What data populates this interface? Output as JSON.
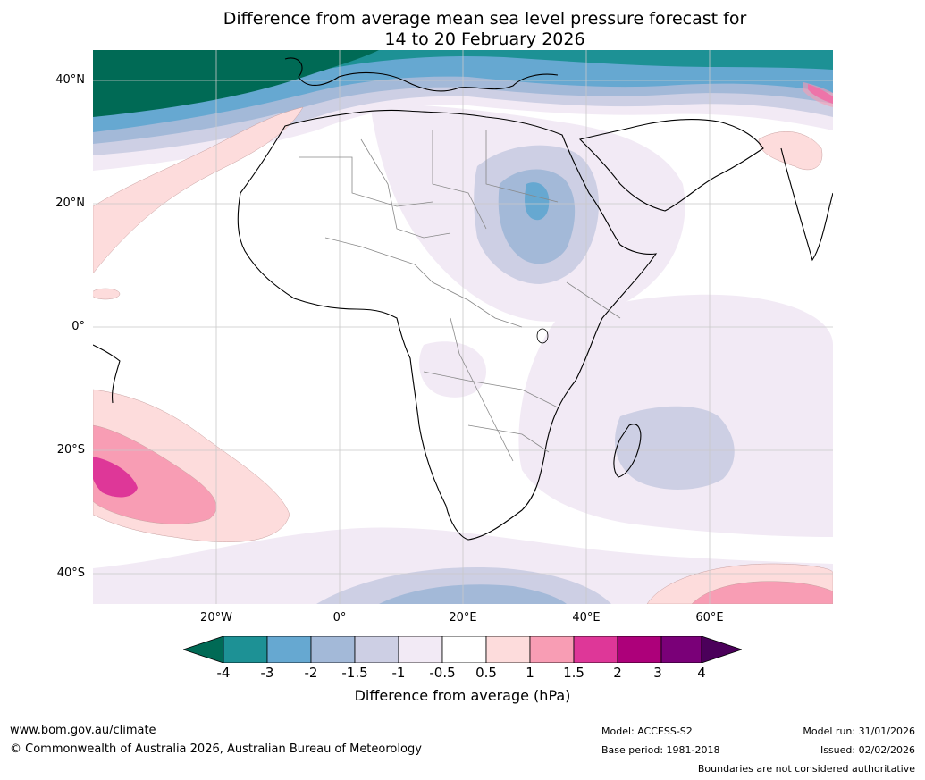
{
  "title": {
    "line1": "Difference from average mean sea level pressure forecast for",
    "line2": "14 to 20 February 2026"
  },
  "map": {
    "lat_labels": [
      "40°N",
      "20°N",
      "0°",
      "20°S",
      "40°S"
    ],
    "lon_labels": [
      "20°W",
      "0°",
      "20°E",
      "40°E",
      "60°E"
    ],
    "extent": {
      "lon_min": -40,
      "lon_max": 80,
      "lat_min": -45,
      "lat_max": 45
    },
    "region": "Africa and surrounding oceans"
  },
  "colorbar": {
    "label": "Difference from average (hPa)",
    "ticks": [
      "-4",
      "-3",
      "-2",
      "-1.5",
      "-1",
      "-0.5",
      "0.5",
      "1",
      "1.5",
      "2",
      "3",
      "4"
    ],
    "colors": {
      "below_min": "#006a55",
      "b1": "#1d9195",
      "b2": "#66a8d1",
      "b3": "#a3b9d8",
      "b4": "#cdcfe4",
      "b5": "#f2eaf5",
      "b6": "#ffffff",
      "b7": "#fddcdc",
      "b8": "#f89db4",
      "b9": "#de3798",
      "b10": "#ad007a",
      "b11": "#7a0078",
      "above_max": "#4b005a"
    }
  },
  "footer": {
    "website": "www.bom.gov.au/climate",
    "copyright": "© Commonwealth of Australia 2026, Australian Bureau of Meteorology",
    "model": "Model: ACCESS-S2",
    "base_period": "Base period: 1981-2018",
    "model_run": "Model run: 31/01/2026",
    "issued": "Issued: 02/02/2026",
    "disclaimer": "Boundaries are not considered authoritative"
  }
}
